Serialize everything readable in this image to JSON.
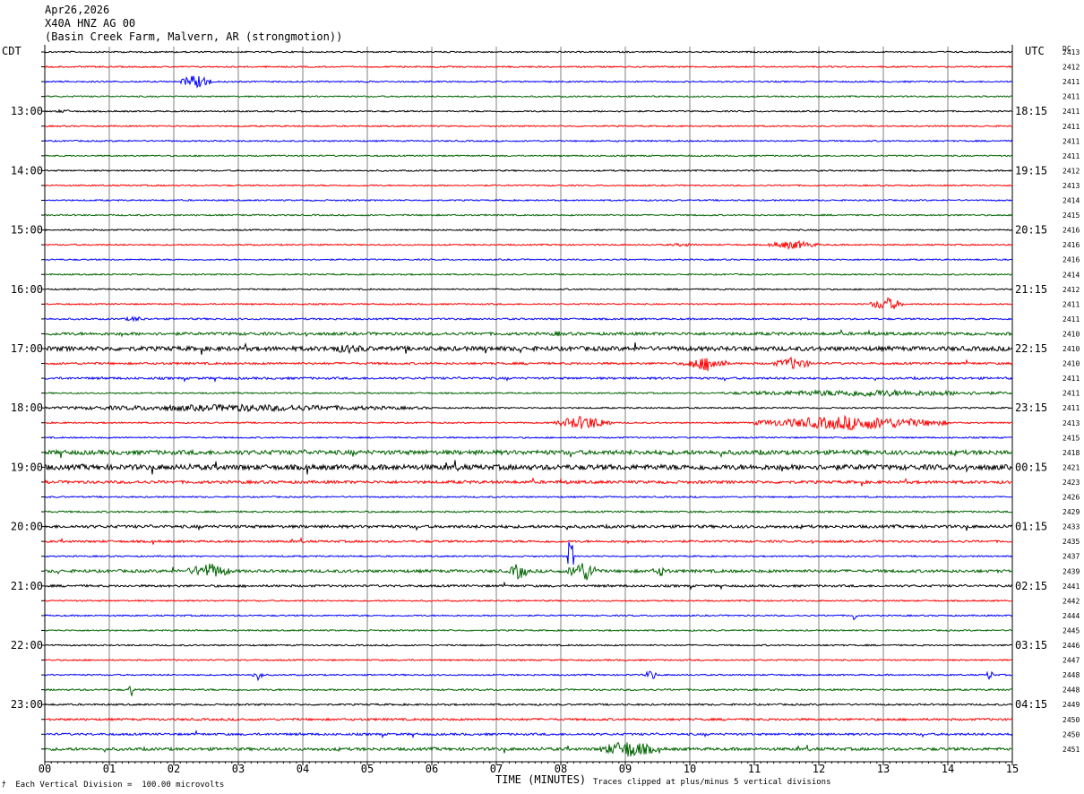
{
  "header": {
    "date": "Apr26,2026",
    "station": "X40A HNZ AG 00",
    "location": "(Basin Creek Farm, Malvern, AR (strongmotion))"
  },
  "timezones": {
    "left": "CDT",
    "right": "UTC",
    "dc_label": "DC"
  },
  "footer": {
    "scale": "Each Vertical Division =  100.00 microvolts",
    "clip": "Traces clipped at plus/minus 5 vertical divisions",
    "xlabel": "TIME (MINUTES)"
  },
  "colors": {
    "trace_cycle": [
      "#000000",
      "#ff0000",
      "#0000ff",
      "#006400"
    ],
    "grid": "#808080"
  },
  "chart_data": {
    "type": "line",
    "xlim": [
      0,
      15
    ],
    "xticks": [
      "00",
      "01",
      "02",
      "03",
      "04",
      "05",
      "06",
      "07",
      "08",
      "09",
      "10",
      "11",
      "12",
      "13",
      "14",
      "15"
    ],
    "trace_count": 48,
    "left_hour_labels": [
      "13:00",
      "14:00",
      "15:00",
      "16:00",
      "17:00",
      "18:00",
      "19:00",
      "20:00",
      "21:00",
      "22:00",
      "23:00"
    ],
    "right_hour_labels": [
      "18:15",
      "19:15",
      "20:15",
      "21:15",
      "22:15",
      "23:15",
      "00:15",
      "01:15",
      "02:15",
      "03:15",
      "04:15"
    ],
    "dc_offsets": [
      2413,
      2412,
      2411,
      2411,
      2411,
      2411,
      2411,
      2411,
      2412,
      2413,
      2414,
      2415,
      2416,
      2416,
      2416,
      2414,
      2412,
      2411,
      2411,
      2410,
      2410,
      2410,
      2411,
      2411,
      2411,
      2413,
      2415,
      2418,
      2421,
      2423,
      2426,
      2429,
      2433,
      2435,
      2437,
      2439,
      2441,
      2442,
      2444,
      2445,
      2446,
      2447,
      2448,
      2448,
      2449,
      2450,
      2450,
      2451
    ],
    "trace_noise": [
      1,
      1,
      1,
      1,
      1,
      1,
      1,
      1,
      1,
      1,
      1,
      1,
      1,
      1,
      1,
      1,
      1,
      1,
      1.2,
      2,
      3,
      1.5,
      1.5,
      1,
      1,
      1,
      1,
      3,
      3.5,
      2,
      1,
      1.2,
      2,
      1.5,
      1,
      2,
      1.5,
      1,
      1,
      1,
      1,
      1,
      1,
      1.2,
      1.2,
      1.5,
      1.5,
      2
    ],
    "events": [
      {
        "trace": 2,
        "start": 2.1,
        "end": 2.6,
        "amp": 8
      },
      {
        "trace": 4,
        "start": 0.1,
        "end": 0.5,
        "amp": 2
      },
      {
        "trace": 13,
        "start": 9.6,
        "end": 10.2,
        "amp": 2
      },
      {
        "trace": 13,
        "start": 11.2,
        "end": 12.0,
        "amp": 5
      },
      {
        "trace": 17,
        "start": 12.8,
        "end": 13.3,
        "amp": 8
      },
      {
        "trace": 18,
        "start": 1.2,
        "end": 1.6,
        "amp": 3
      },
      {
        "trace": 19,
        "start": 7.8,
        "end": 8.1,
        "amp": 3
      },
      {
        "trace": 20,
        "start": 4.2,
        "end": 5.2,
        "amp": 5
      },
      {
        "trace": 21,
        "start": 9.9,
        "end": 10.6,
        "amp": 8
      },
      {
        "trace": 21,
        "start": 11.3,
        "end": 11.9,
        "amp": 7
      },
      {
        "trace": 23,
        "start": 10.5,
        "end": 15.0,
        "amp": 4
      },
      {
        "trace": 24,
        "start": 0.0,
        "end": 6.0,
        "amp": 4
      },
      {
        "trace": 25,
        "start": 7.9,
        "end": 8.8,
        "amp": 8
      },
      {
        "trace": 25,
        "start": 11.0,
        "end": 14.0,
        "amp": 8
      },
      {
        "trace": 35,
        "start": 2.2,
        "end": 2.9,
        "amp": 9
      },
      {
        "trace": 35,
        "start": 7.2,
        "end": 7.5,
        "amp": 10
      },
      {
        "trace": 35,
        "start": 8.1,
        "end": 8.6,
        "amp": 12
      },
      {
        "trace": 35,
        "start": 9.4,
        "end": 9.7,
        "amp": 6
      },
      {
        "trace": 34,
        "start": 8.1,
        "end": 8.2,
        "amp": 25
      },
      {
        "trace": 38,
        "start": 12.5,
        "end": 12.6,
        "amp": 6
      },
      {
        "trace": 42,
        "start": 3.2,
        "end": 3.4,
        "amp": 6
      },
      {
        "trace": 42,
        "start": 9.3,
        "end": 9.5,
        "amp": 6
      },
      {
        "trace": 42,
        "start": 14.6,
        "end": 14.7,
        "amp": 7
      },
      {
        "trace": 43,
        "start": 1.3,
        "end": 1.4,
        "amp": 9
      },
      {
        "trace": 47,
        "start": 8.6,
        "end": 9.5,
        "amp": 10
      }
    ]
  }
}
